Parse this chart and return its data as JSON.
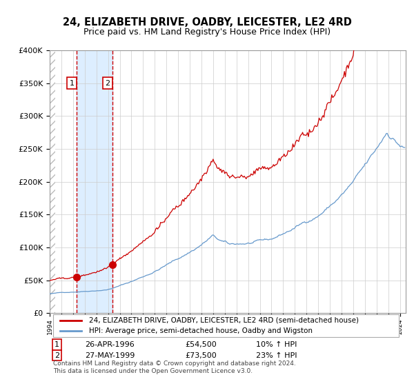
{
  "title": "24, ELIZABETH DRIVE, OADBY, LEICESTER, LE2 4RD",
  "subtitle": "Price paid vs. HM Land Registry's House Price Index (HPI)",
  "sale1_date": "1996-04-26",
  "sale1_label": "26-APR-1996",
  "sale1_price": 54500,
  "sale1_pct": "10%",
  "sale2_date": "1999-05-27",
  "sale2_label": "27-MAY-1999",
  "sale2_price": 73500,
  "sale2_pct": "23%",
  "hpi_label": "HPI: Average price, semi-detached house, Oadby and Wigston",
  "property_label": "24, ELIZABETH DRIVE, OADBY, LEICESTER, LE2 4RD (semi-detached house)",
  "footer": "Contains HM Land Registry data © Crown copyright and database right 2024.\nThis data is licensed under the Open Government Licence v3.0.",
  "property_color": "#cc0000",
  "hpi_color": "#6699cc",
  "highlight_color": "#ddeeff",
  "vline_color": "#cc0000",
  "ylim": [
    0,
    400000
  ],
  "xlabel": "",
  "ylabel": "",
  "background_hatch": true,
  "hatch_color": "#cccccc"
}
